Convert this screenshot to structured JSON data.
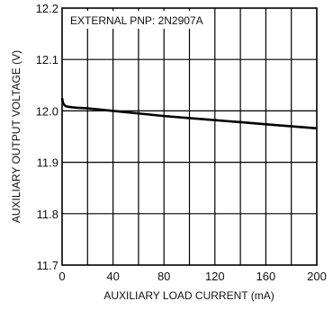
{
  "chart_data": {
    "type": "line",
    "title": "",
    "annotation": "EXTERNAL PNP: 2N2907A",
    "xlabel": "AUXILIARY LOAD CURRENT (mA)",
    "ylabel": "AUXILIARY OUTPUT VOLTAGE (V)",
    "xlim": [
      0,
      200
    ],
    "ylim": [
      11.7,
      12.2
    ],
    "x_ticks": [
      0,
      40,
      80,
      120,
      160,
      200
    ],
    "x_tick_labels": [
      "0",
      "40",
      "80",
      "120",
      "160",
      "200"
    ],
    "y_ticks": [
      11.7,
      11.8,
      11.9,
      12.0,
      12.1,
      12.2
    ],
    "y_tick_labels": [
      "11.7",
      "11.8",
      "11.9",
      "12.0",
      "12.1",
      "12.2"
    ],
    "x_minor_step": 20,
    "grid": true,
    "line_color": "#000000",
    "series": [
      {
        "x": [
          0,
          0.5,
          1,
          2,
          3,
          5,
          8,
          12,
          20,
          40,
          60,
          80,
          100,
          120,
          140,
          160,
          180,
          200
        ],
        "y": [
          12.025,
          12.018,
          12.014,
          12.011,
          12.009,
          12.008,
          12.007,
          12.006,
          12.005,
          12.0,
          11.995,
          11.99,
          11.986,
          11.982,
          11.978,
          11.974,
          11.97,
          11.966
        ]
      }
    ]
  }
}
